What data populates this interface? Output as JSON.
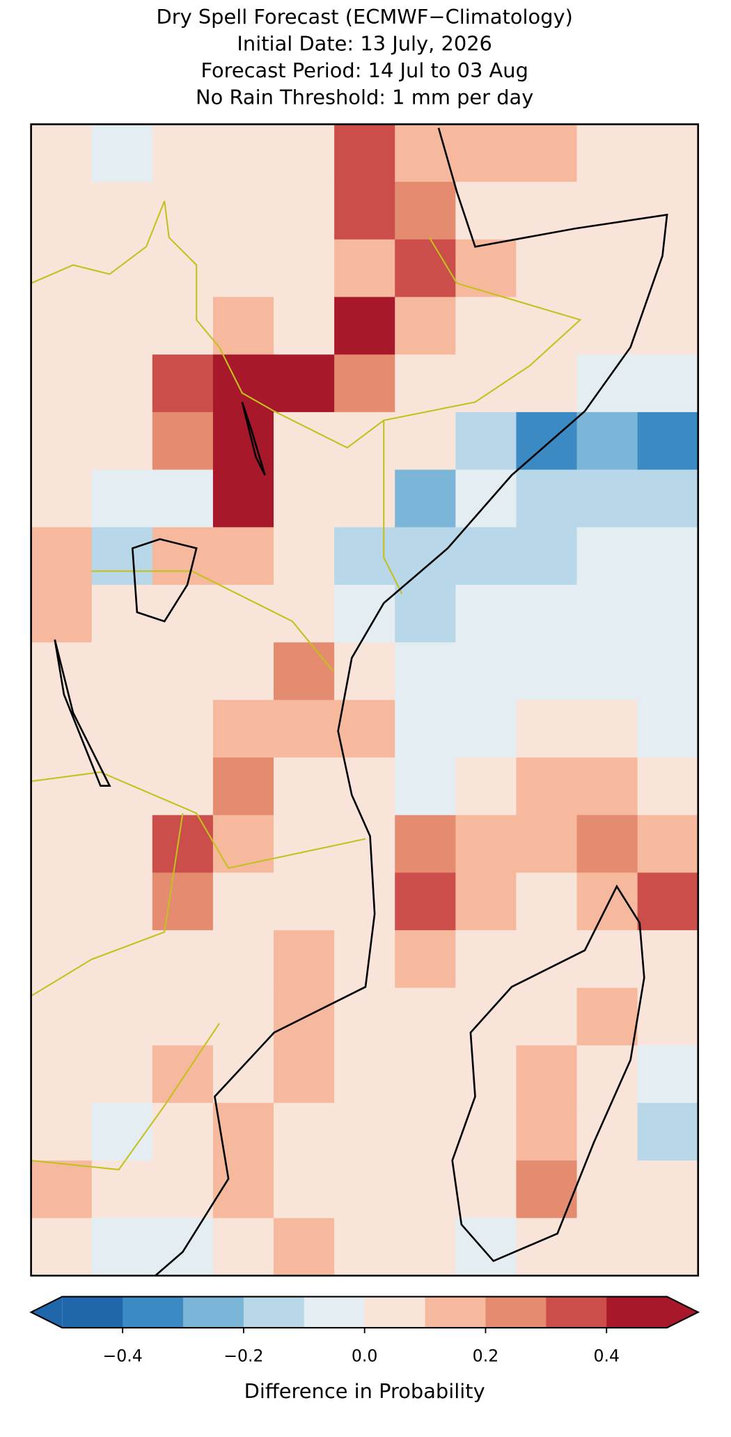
{
  "chart_data": {
    "type": "map",
    "title_lines": [
      "Dry Spell Forecast (ECMWF−Climatology)",
      "Initial Date: 13 July, 2026",
      "Forecast Period: 14 Jul to 03 Aug",
      "No Rain Threshold: 1 mm per day"
    ],
    "colorbar": {
      "label": "Difference in Probability",
      "levels": [
        -0.5,
        -0.4,
        -0.3,
        -0.2,
        -0.1,
        0,
        0.1,
        0.2,
        0.3,
        0.4,
        0.5
      ],
      "colors": [
        "#2066ab",
        "#3b8ac4",
        "#7bb5d8",
        "#b8d8e9",
        "#e4edf2",
        "#f9e4da",
        "#f6b99d",
        "#e48b70",
        "#cc4e4a",
        "#a8182b"
      ],
      "extend": "both",
      "ticks": [
        {
          "value": -0.4,
          "label": "−0.4"
        },
        {
          "value": -0.2,
          "label": "−0.2"
        },
        {
          "value": 0,
          "label": "0.0"
        },
        0.2,
        0.4
      ]
    },
    "grid_values": [
      [
        0.05,
        -0.05,
        0.05,
        0.05,
        0.05,
        0.35,
        0.15,
        0.15,
        0.15,
        0.05,
        0.05
      ],
      [
        0.05,
        0.05,
        0.05,
        0.05,
        0.05,
        0.35,
        0.25,
        0.05,
        0.05,
        0.05,
        0.05
      ],
      [
        0.05,
        0.05,
        0.05,
        0.05,
        0.05,
        0.15,
        0.35,
        0.15,
        0.05,
        0.05,
        0.05
      ],
      [
        0.05,
        0.05,
        0.05,
        0.15,
        0.05,
        0.45,
        0.15,
        0.05,
        0.05,
        0.05,
        0.05
      ],
      [
        0.05,
        0.05,
        0.35,
        0.45,
        0.45,
        0.25,
        0.05,
        0.05,
        0.05,
        -0.05,
        -0.05
      ],
      [
        0.05,
        0.05,
        0.25,
        0.45,
        0.05,
        0.05,
        0.05,
        -0.15,
        -0.35,
        -0.25,
        -0.35
      ],
      [
        0.05,
        -0.05,
        -0.05,
        0.45,
        0.05,
        0.05,
        -0.25,
        -0.05,
        -0.15,
        -0.15,
        -0.15
      ],
      [
        0.15,
        -0.15,
        0.15,
        0.15,
        0.05,
        -0.15,
        -0.15,
        -0.15,
        -0.15,
        -0.05,
        -0.05
      ],
      [
        0.15,
        0.05,
        0.05,
        0.05,
        0.05,
        -0.05,
        -0.15,
        -0.05,
        -0.05,
        -0.05,
        -0.05
      ],
      [
        0.05,
        0.05,
        0.05,
        0.05,
        0.25,
        0.05,
        -0.05,
        -0.05,
        -0.05,
        -0.05,
        -0.05
      ],
      [
        0.05,
        0.05,
        0.05,
        0.15,
        0.15,
        0.15,
        -0.05,
        -0.05,
        0.05,
        0.05,
        -0.05
      ],
      [
        0.05,
        0.05,
        0.05,
        0.25,
        0.05,
        0.05,
        -0.05,
        0.05,
        0.15,
        0.15,
        0.05
      ],
      [
        0.05,
        0.05,
        0.35,
        0.15,
        0.05,
        0.05,
        0.25,
        0.15,
        0.15,
        0.25,
        0.15
      ],
      [
        0.05,
        0.05,
        0.25,
        0.05,
        0.05,
        0.05,
        0.35,
        0.15,
        0.05,
        0.15,
        0.35
      ],
      [
        0.05,
        0.05,
        0.05,
        0.05,
        0.15,
        0.05,
        0.15,
        0.05,
        0.05,
        0.05,
        0.05
      ],
      [
        0.05,
        0.05,
        0.05,
        0.05,
        0.15,
        0.05,
        0.05,
        0.05,
        0.05,
        0.15,
        0.05
      ],
      [
        0.05,
        0.05,
        0.15,
        0.05,
        0.15,
        0.05,
        0.05,
        0.05,
        0.15,
        0.05,
        -0.05
      ],
      [
        0.05,
        -0.05,
        0.05,
        0.15,
        0.05,
        0.05,
        0.05,
        0.05,
        0.15,
        0.05,
        -0.15
      ],
      [
        0.15,
        0.05,
        0.05,
        0.15,
        0.05,
        0.05,
        0.05,
        0.05,
        0.25,
        0.05,
        0.05
      ],
      [
        0.05,
        -0.05,
        -0.05,
        0.05,
        0.15,
        0.05,
        0.05,
        -0.05,
        0.05,
        0.05,
        0.05
      ]
    ]
  }
}
